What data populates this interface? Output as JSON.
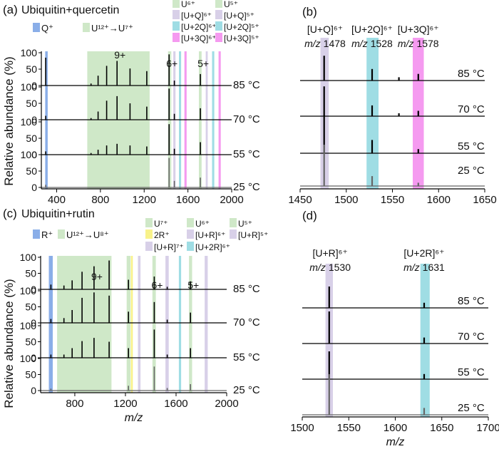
{
  "colors": {
    "q_ion": "#8aaee8",
    "charge_band": "#cfe8c8",
    "adduct_1": "#d8d0e8",
    "adduct_2": "#9fdde4",
    "adduct_3": "#f59af0",
    "r2": "#f8f28a",
    "spectrum": "#000000",
    "bottom_trace": "#666666"
  },
  "y_axis_label": "Relative abundance (%)",
  "chart_data": [
    {
      "id": "a",
      "type": "line",
      "panel_label": "(a)",
      "title": "Ubiquitin+quercetin",
      "xlabel": "",
      "xlim": [
        260,
        2000
      ],
      "xticks": [
        400,
        800,
        1200,
        1600,
        2000
      ],
      "ylim": [
        0,
        100
      ],
      "yticks": [
        0,
        50,
        100
      ],
      "series_labels": [
        "85 °C",
        "70 °C",
        "55 °C",
        "25 °C"
      ],
      "series_colors": [
        "#000000",
        "#000000",
        "#000000",
        "#666666"
      ],
      "legend": [
        {
          "label": "Q⁺",
          "color": "#8aaee8"
        },
        {
          "label": "U¹²⁺→U⁷⁺",
          "color": "#cfe8c8"
        },
        {
          "label": "U⁶⁺",
          "color": "#cfe8c8"
        },
        {
          "label": "[U+Q]⁶⁺",
          "color": "#d8d0e8"
        },
        {
          "label": "[U+2Q]⁶⁺",
          "color": "#9fdde4"
        },
        {
          "label": "[U+3Q]⁶⁺",
          "color": "#f59af0"
        },
        {
          "label": "U⁵⁺",
          "color": "#cfe8c8"
        },
        {
          "label": "[U+Q]⁵⁺",
          "color": "#d8d0e8"
        },
        {
          "label": "[U+2Q]⁵⁺",
          "color": "#9fdde4"
        },
        {
          "label": "[U+3Q]⁵⁺",
          "color": "#f59af0"
        }
      ],
      "highlight_bands": [
        {
          "label": "Q⁺",
          "from": 295,
          "to": 318,
          "color": "#8aaee8"
        },
        {
          "label": "U¹²⁺→U⁷⁺",
          "from": 680,
          "to": 1250,
          "color": "#cfe8c8"
        },
        {
          "label": "U⁶⁺",
          "from": 1418,
          "to": 1448,
          "color": "#cfe8c8"
        },
        {
          "label": "[U+Q]⁶⁺",
          "from": 1466,
          "to": 1486,
          "color": "#d8d0e8"
        },
        {
          "label": "[U+2Q]⁶⁺",
          "from": 1518,
          "to": 1538,
          "color": "#9fdde4"
        },
        {
          "label": "[U+3Q]⁶⁺",
          "from": 1568,
          "to": 1588,
          "color": "#f59af0"
        },
        {
          "label": "U⁵⁺",
          "from": 1700,
          "to": 1725,
          "color": "#cfe8c8"
        },
        {
          "label": "[U+Q]⁵⁺",
          "from": 1763,
          "to": 1781,
          "color": "#d8d0e8"
        },
        {
          "label": "[U+2Q]⁵⁺",
          "from": 1821,
          "to": 1841,
          "color": "#9fdde4"
        },
        {
          "label": "[U+3Q]⁵⁺",
          "from": 1880,
          "to": 1900,
          "color": "#f59af0"
        }
      ],
      "peak_annotations": [
        {
          "label": "9+",
          "x": 952
        },
        {
          "label": "6+",
          "x": 1428
        },
        {
          "label": "5+",
          "x": 1714
        }
      ],
      "spectra": [
        {
          "name": "85 °C",
          "peaks": [
            {
              "x": 300,
              "y": 85
            },
            {
              "x": 714,
              "y": 6
            },
            {
              "x": 779,
              "y": 30
            },
            {
              "x": 857,
              "y": 60
            },
            {
              "x": 952,
              "y": 75
            },
            {
              "x": 1071,
              "y": 52
            },
            {
              "x": 1224,
              "y": 44
            },
            {
              "x": 1428,
              "y": 95
            },
            {
              "x": 1476,
              "y": 15
            },
            {
              "x": 1714,
              "y": 35
            }
          ]
        },
        {
          "name": "70 °C",
          "peaks": [
            {
              "x": 300,
              "y": 12
            },
            {
              "x": 714,
              "y": 5
            },
            {
              "x": 779,
              "y": 25
            },
            {
              "x": 857,
              "y": 58
            },
            {
              "x": 952,
              "y": 72
            },
            {
              "x": 1071,
              "y": 50
            },
            {
              "x": 1224,
              "y": 40
            },
            {
              "x": 1428,
              "y": 95
            },
            {
              "x": 1476,
              "y": 18
            },
            {
              "x": 1714,
              "y": 35
            }
          ]
        },
        {
          "name": "55 °C",
          "peaks": [
            {
              "x": 300,
              "y": 10
            },
            {
              "x": 714,
              "y": 5
            },
            {
              "x": 779,
              "y": 15
            },
            {
              "x": 857,
              "y": 28
            },
            {
              "x": 952,
              "y": 33
            },
            {
              "x": 1071,
              "y": 28
            },
            {
              "x": 1224,
              "y": 25
            },
            {
              "x": 1428,
              "y": 93
            },
            {
              "x": 1476,
              "y": 18
            },
            {
              "x": 1714,
              "y": 38
            }
          ]
        },
        {
          "name": "25 °C",
          "peaks": [
            {
              "x": 300,
              "y": 8
            },
            {
              "x": 1428,
              "y": 90
            },
            {
              "x": 1476,
              "y": 20
            },
            {
              "x": 1714,
              "y": 30
            }
          ]
        }
      ]
    },
    {
      "id": "b",
      "type": "line",
      "panel_label": "(b)",
      "title": "",
      "xlabel": "",
      "xlim": [
        1450,
        1650
      ],
      "xticks": [
        1450,
        1500,
        1550,
        1600,
        1650
      ],
      "series_labels": [
        "85 °C",
        "70 °C",
        "55 °C",
        "25 °C"
      ],
      "series_colors": [
        "#000000",
        "#000000",
        "#000000",
        "#666666"
      ],
      "highlight_bands": [
        {
          "label": "[U+Q]⁶⁺",
          "from": 1472,
          "to": 1481,
          "color": "#d8d0e8"
        },
        {
          "label": "[U+2Q]⁶⁺",
          "from": 1522,
          "to": 1535,
          "color": "#9fdde4"
        },
        {
          "label": "[U+3Q]⁶⁺",
          "from": 1572,
          "to": 1584,
          "color": "#f59af0"
        }
      ],
      "peak_labels": [
        {
          "ion": "[U+Q]⁶⁺",
          "mz_text": "m/z",
          "mz_value": "1478",
          "x": 1477
        },
        {
          "ion": "[U+2Q]⁶⁺",
          "mz_text": "m/z",
          "mz_value": "1528",
          "x": 1528
        },
        {
          "ion": "[U+3Q]⁶⁺",
          "mz_text": "m/z",
          "mz_value": "1578",
          "x": 1578
        }
      ],
      "spectra": [
        {
          "name": "85 °C",
          "peaks": [
            {
              "x": 1476,
              "y": 60
            },
            {
              "x": 1528,
              "y": 28
            },
            {
              "x": 1557,
              "y": 8
            },
            {
              "x": 1578,
              "y": 16
            }
          ]
        },
        {
          "name": "70 °C",
          "peaks": [
            {
              "x": 1476,
              "y": 72
            },
            {
              "x": 1528,
              "y": 26
            },
            {
              "x": 1557,
              "y": 7
            },
            {
              "x": 1578,
              "y": 13
            }
          ]
        },
        {
          "name": "55 °C",
          "peaks": [
            {
              "x": 1476,
              "y": 92
            },
            {
              "x": 1528,
              "y": 32
            },
            {
              "x": 1578,
              "y": 10
            }
          ]
        },
        {
          "name": "25 °C",
          "peaks": [
            {
              "x": 1476,
              "y": 100
            },
            {
              "x": 1528,
              "y": 24
            },
            {
              "x": 1578,
              "y": 8
            }
          ]
        }
      ]
    },
    {
      "id": "c",
      "type": "line",
      "panel_label": "(c)",
      "title": "Ubiquitin+rutin",
      "xlabel": "m/z",
      "xlim": [
        530,
        2000
      ],
      "xticks": [
        800,
        1200,
        1600,
        2000
      ],
      "ylim": [
        0,
        100
      ],
      "yticks": [
        0,
        50,
        100
      ],
      "series_labels": [
        "85 °C",
        "70 °C",
        "55 °C",
        "25 °C"
      ],
      "series_colors": [
        "#000000",
        "#000000",
        "#000000",
        "#666666"
      ],
      "legend": [
        {
          "label": "R⁺",
          "color": "#8aaee8"
        },
        {
          "label": "U¹²⁺→U⁸⁺",
          "color": "#cfe8c8"
        },
        {
          "label": "U⁷⁺",
          "color": "#cfe8c8"
        },
        {
          "label": "2R⁺",
          "color": "#f8f28a"
        },
        {
          "label": "[U+R]⁷⁺",
          "color": "#d8d0e8"
        },
        {
          "label": "U⁶⁺",
          "color": "#cfe8c8"
        },
        {
          "label": "[U+R]⁶⁺",
          "color": "#d8d0e8"
        },
        {
          "label": "[U+2R]⁶⁺",
          "color": "#9fdde4"
        },
        {
          "label": "U⁵⁺",
          "color": "#cfe8c8"
        },
        {
          "label": "[U+R]⁵⁺",
          "color": "#d8d0e8"
        }
      ],
      "highlight_bands": [
        {
          "label": "R⁺",
          "from": 595,
          "to": 626,
          "color": "#8aaee8"
        },
        {
          "label": "U¹²⁺→U⁸⁺",
          "from": 660,
          "to": 1090,
          "color": "#cfe8c8"
        },
        {
          "label": "U⁷⁺",
          "from": 1210,
          "to": 1240,
          "color": "#cfe8c8"
        },
        {
          "label": "2R⁺",
          "from": 1243,
          "to": 1258,
          "color": "#f8f28a"
        },
        {
          "label": "[U+R]⁷⁺",
          "from": 1299,
          "to": 1319,
          "color": "#d8d0e8"
        },
        {
          "label": "U⁶⁺",
          "from": 1413,
          "to": 1440,
          "color": "#cfe8c8"
        },
        {
          "label": "[U+R]⁶⁺",
          "from": 1516,
          "to": 1542,
          "color": "#d8d0e8"
        },
        {
          "label": "[U+2R]⁶⁺",
          "from": 1622,
          "to": 1640,
          "color": "#9fdde4"
        },
        {
          "label": "U⁵⁺",
          "from": 1702,
          "to": 1727,
          "color": "#cfe8c8"
        },
        {
          "label": "[U+R]⁵⁺",
          "from": 1826,
          "to": 1850,
          "color": "#d8d0e8"
        }
      ],
      "peak_annotations": [
        {
          "label": "9+",
          "x": 952
        },
        {
          "label": "6+",
          "x": 1428
        },
        {
          "label": "5+",
          "x": 1714
        }
      ],
      "spectra": [
        {
          "name": "85 °C",
          "peaks": [
            {
              "x": 611,
              "y": 15
            },
            {
              "x": 714,
              "y": 12
            },
            {
              "x": 779,
              "y": 28
            },
            {
              "x": 857,
              "y": 55
            },
            {
              "x": 952,
              "y": 72
            },
            {
              "x": 1071,
              "y": 90
            },
            {
              "x": 1224,
              "y": 30
            },
            {
              "x": 1428,
              "y": 40
            },
            {
              "x": 1530,
              "y": 8
            },
            {
              "x": 1714,
              "y": 25
            }
          ]
        },
        {
          "name": "70 °C",
          "peaks": [
            {
              "x": 611,
              "y": 12
            },
            {
              "x": 714,
              "y": 15
            },
            {
              "x": 779,
              "y": 40
            },
            {
              "x": 857,
              "y": 78
            },
            {
              "x": 952,
              "y": 95
            },
            {
              "x": 1071,
              "y": 85
            },
            {
              "x": 1224,
              "y": 35
            },
            {
              "x": 1428,
              "y": 65
            },
            {
              "x": 1530,
              "y": 10
            },
            {
              "x": 1714,
              "y": 32
            }
          ]
        },
        {
          "name": "55 °C",
          "peaks": [
            {
              "x": 611,
              "y": 10
            },
            {
              "x": 714,
              "y": 10
            },
            {
              "x": 779,
              "y": 30
            },
            {
              "x": 857,
              "y": 52
            },
            {
              "x": 952,
              "y": 62
            },
            {
              "x": 1071,
              "y": 50
            },
            {
              "x": 1224,
              "y": 30
            },
            {
              "x": 1428,
              "y": 88
            },
            {
              "x": 1530,
              "y": 10
            },
            {
              "x": 1714,
              "y": 30
            }
          ]
        },
        {
          "name": "25 °C",
          "peaks": [
            {
              "x": 611,
              "y": 6
            },
            {
              "x": 1224,
              "y": 15
            },
            {
              "x": 1428,
              "y": 75
            },
            {
              "x": 1530,
              "y": 8
            },
            {
              "x": 1714,
              "y": 20
            }
          ]
        }
      ]
    },
    {
      "id": "d",
      "type": "line",
      "panel_label": "(d)",
      "title": "",
      "xlabel": "m/z",
      "xlim": [
        1500,
        1700
      ],
      "xticks": [
        1500,
        1550,
        1600,
        1650,
        1700
      ],
      "series_labels": [
        "85 °C",
        "70 °C",
        "55 °C",
        "25 °C"
      ],
      "series_colors": [
        "#000000",
        "#000000",
        "#000000",
        "#666666"
      ],
      "highlight_bands": [
        {
          "label": "[U+R]⁶⁺",
          "from": 1525,
          "to": 1533,
          "color": "#d8d0e8"
        },
        {
          "label": "[U+2R]⁶⁺",
          "from": 1627,
          "to": 1637,
          "color": "#9fdde4"
        }
      ],
      "peak_labels": [
        {
          "ion": "[U+R]⁶⁺",
          "mz_text": "m/z",
          "mz_value": "1530",
          "x": 1530
        },
        {
          "ion": "[U+2R]⁶⁺",
          "mz_text": "m/z",
          "mz_value": "1631",
          "x": 1631
        }
      ],
      "spectra": [
        {
          "name": "85 °C",
          "peaks": [
            {
              "x": 1529,
              "y": 50
            },
            {
              "x": 1631,
              "y": 12
            }
          ]
        },
        {
          "name": "70 °C",
          "peaks": [
            {
              "x": 1529,
              "y": 75
            },
            {
              "x": 1631,
              "y": 14
            }
          ]
        },
        {
          "name": "55 °C",
          "peaks": [
            {
              "x": 1529,
              "y": 65
            },
            {
              "x": 1631,
              "y": 12
            }
          ]
        },
        {
          "name": "25 °C",
          "peaks": [
            {
              "x": 1529,
              "y": 95
            },
            {
              "x": 1631,
              "y": 16
            }
          ]
        }
      ]
    }
  ]
}
